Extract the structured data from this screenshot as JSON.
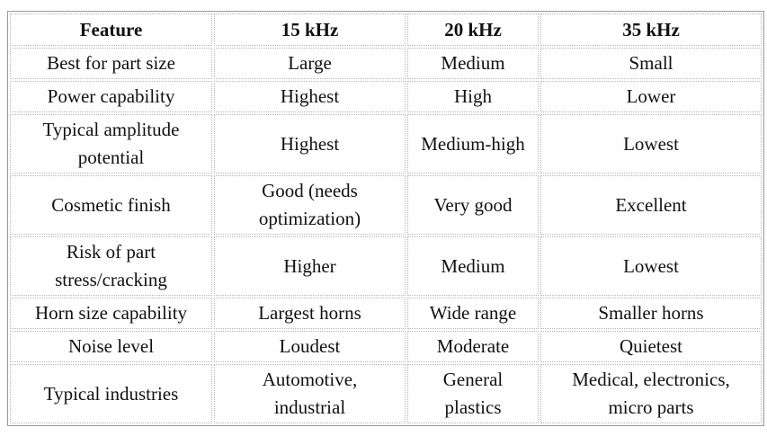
{
  "table": {
    "header": [
      "Feature",
      "15 kHz",
      "20 kHz",
      "35 kHz"
    ],
    "rows": [
      [
        [
          "Best for part size"
        ],
        [
          "Large"
        ],
        [
          "Medium"
        ],
        [
          "Small"
        ]
      ],
      [
        [
          "Power capability"
        ],
        [
          "Highest"
        ],
        [
          "High"
        ],
        [
          "Lower"
        ]
      ],
      [
        [
          "Typical amplitude",
          "potential"
        ],
        [
          "Highest"
        ],
        [
          "Medium-high"
        ],
        [
          "Lowest"
        ]
      ],
      [
        [
          "Cosmetic finish"
        ],
        [
          "Good (needs",
          "optimization)"
        ],
        [
          "Very good"
        ],
        [
          "Excellent"
        ]
      ],
      [
        [
          "Risk of part",
          "stress/cracking"
        ],
        [
          "Higher"
        ],
        [
          "Medium"
        ],
        [
          "Lowest"
        ]
      ],
      [
        [
          "Horn size capability"
        ],
        [
          "Largest horns"
        ],
        [
          "Wide range"
        ],
        [
          "Smaller horns"
        ]
      ],
      [
        [
          "Noise level"
        ],
        [
          "Loudest"
        ],
        [
          "Moderate"
        ],
        [
          "Quietest"
        ]
      ],
      [
        [
          "Typical industries"
        ],
        [
          "Automotive,",
          "industrial"
        ],
        [
          "General",
          "plastics"
        ],
        [
          "Medical, electronics,",
          "micro parts"
        ]
      ]
    ]
  }
}
